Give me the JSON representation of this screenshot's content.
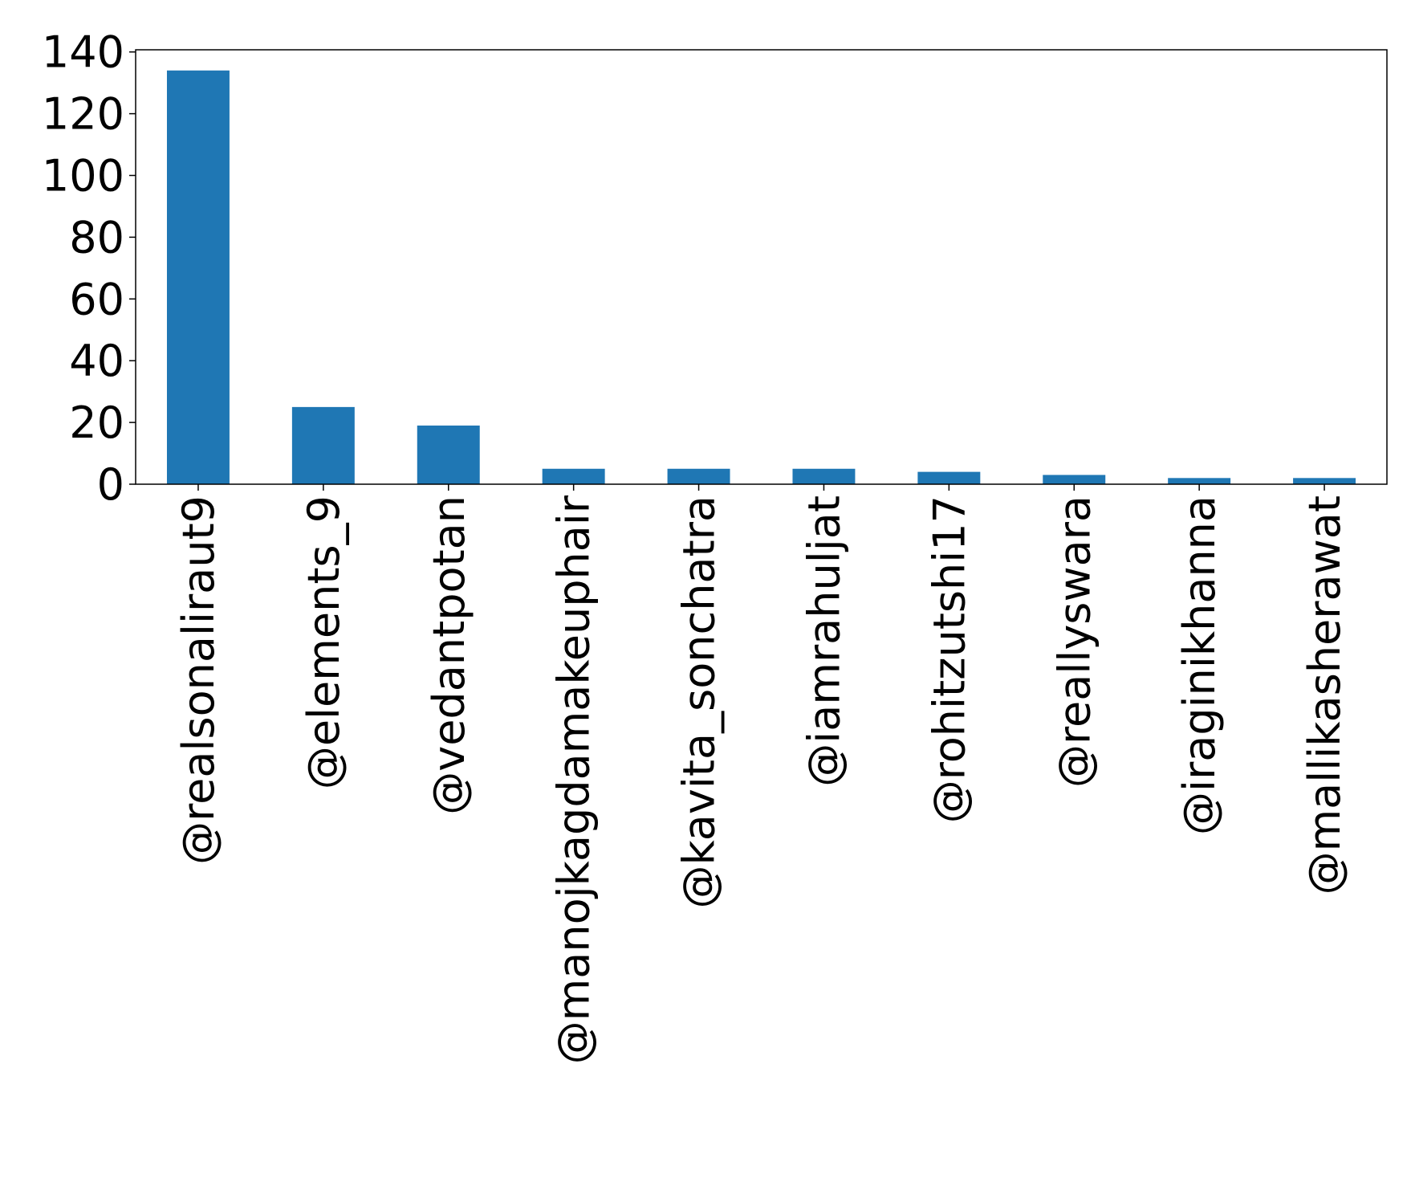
{
  "chart_data": {
    "type": "bar",
    "categories": [
      "@realsonaliraut9",
      "@elements_9",
      "@vedantpotan",
      "@manojkagdamakeuphair",
      "@kavita_sonchatra",
      "@iamrahuljat",
      "@rohitzutshi17",
      "@reallyswara",
      "@iraginikhanna",
      "@mallikasherawat"
    ],
    "values": [
      134,
      25,
      19,
      5,
      5,
      5,
      4,
      3,
      2,
      2
    ],
    "color": "#1f77b4",
    "ylim": [
      0,
      140.7
    ],
    "yticks": [
      0,
      20,
      40,
      60,
      80,
      100,
      120,
      140
    ],
    "grid": false
  }
}
